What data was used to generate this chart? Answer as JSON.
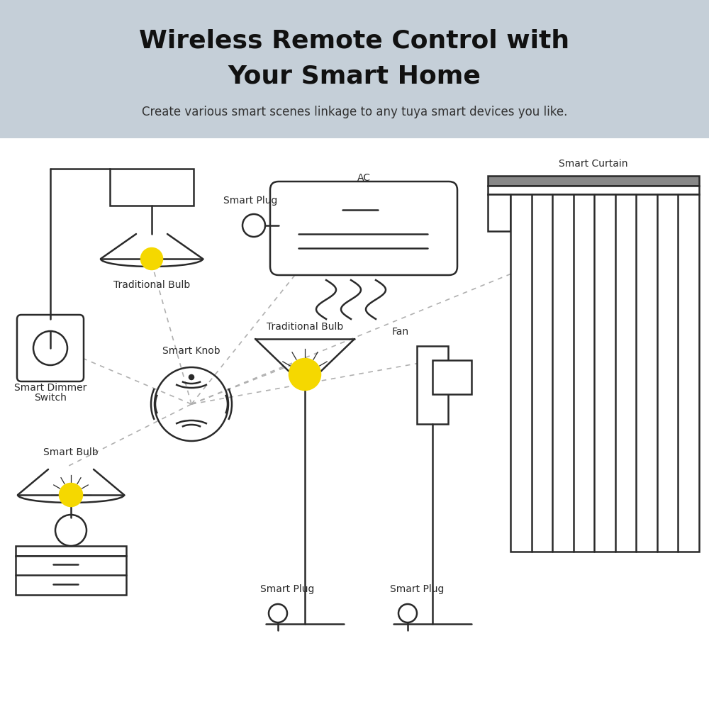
{
  "title_line1": "Wireless Remote Control with",
  "title_line2": "Your Smart Home",
  "subtitle": "Create various smart scenes linkage to any tuya smart devices you like.",
  "header_bg": "#c5cfd8",
  "body_bg": "#ffffff",
  "line_color": "#2a2a2a",
  "dashed_color": "#b0b0b0",
  "yellow_color": "#f5d800",
  "title_fontsize": 26,
  "subtitle_fontsize": 12,
  "label_fontsize": 10
}
